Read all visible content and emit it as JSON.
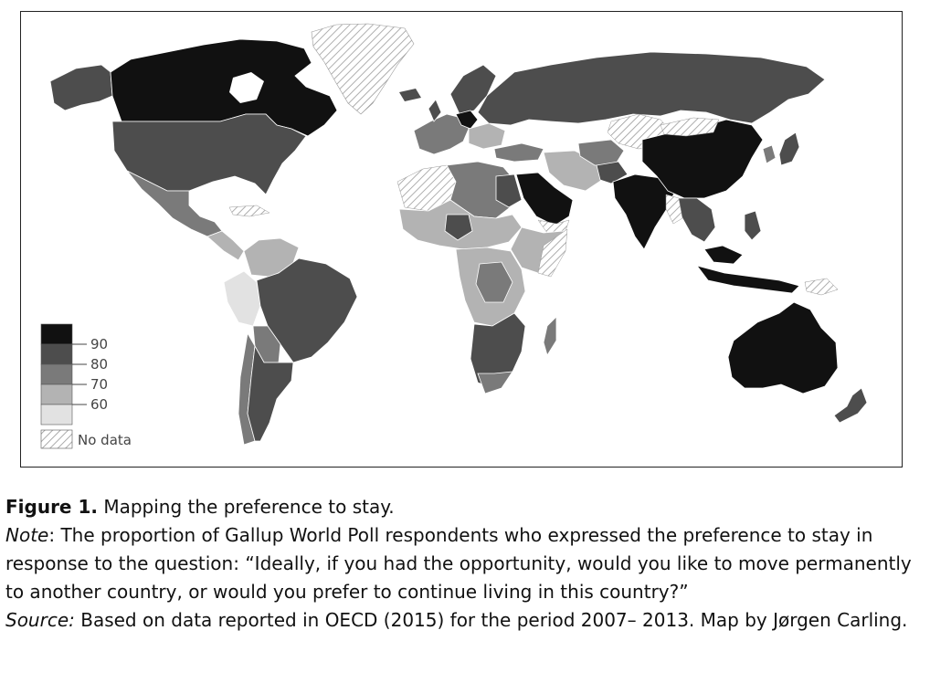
{
  "colors": {
    "c90": "#111111",
    "c80": "#4d4d4d",
    "c70": "#7a7a7a",
    "c60": "#b3b3b3",
    "c50": "#e2e2e2",
    "nodata": "#ffffff",
    "hatch": "#9a9a9a",
    "border": "#ffffff"
  },
  "legend": {
    "ticks": [
      "90",
      "80",
      "70",
      "60"
    ],
    "no_data": "No data"
  },
  "caption": {
    "figure_label": "Figure 1.",
    "figure_title": "Mapping the preference to stay.",
    "note_label": "Note",
    "note_text": ": The proportion of Gallup World Poll respondents who expressed the preference to stay in response to the question: “Ideally, if you had the opportunity, would you like to move permanently to another country, or would you prefer to continue living in this country?”",
    "source_label": "Source:",
    "source_text": " Based on data reported in OECD (2015) for the period 2007– 2013. Map by Jørgen Carling."
  }
}
